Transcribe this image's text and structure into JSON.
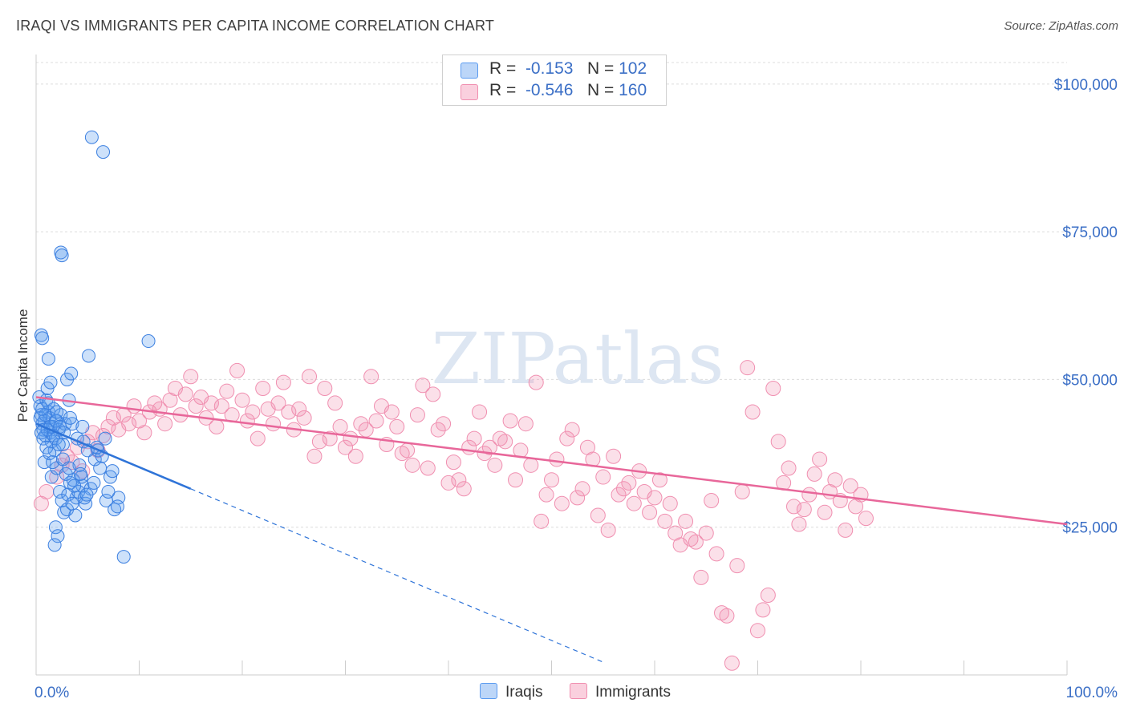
{
  "title": "IRAQI VS IMMIGRANTS PER CAPITA INCOME CORRELATION CHART",
  "source": "Source: ZipAtlas.com",
  "watermark": "ZIPatlas",
  "legend": {
    "rows": [
      {
        "r_label": "R =",
        "r_value": "-0.153",
        "n_label": "N =",
        "n_value": "102",
        "color": "#5b9bf0"
      },
      {
        "r_label": "R =",
        "r_value": "-0.546",
        "n_label": "N =",
        "n_value": "160",
        "color": "#f08fb0"
      }
    ]
  },
  "bottom_legend": {
    "series1": "Iraqis",
    "series2": "Immigrants"
  },
  "chart_data": {
    "type": "scatter",
    "title": "IRAQI VS IMMIGRANTS PER CAPITA INCOME CORRELATION CHART",
    "xlabel": "",
    "ylabel": "Per Capita Income",
    "xlim": [
      0,
      100
    ],
    "ylim": [
      0,
      105000
    ],
    "x_tick_labels": [
      "0.0%",
      "100.0%"
    ],
    "y_ticks": [
      25000,
      50000,
      75000,
      100000
    ],
    "y_tick_labels": [
      "$25,000",
      "$50,000",
      "$75,000",
      "$100,000"
    ],
    "grid": true,
    "series": [
      {
        "name": "Iraqis",
        "color": "#5b9bf0",
        "trend": {
          "x0": 0,
          "y0": 42500,
          "x1": 15,
          "y1": 31500,
          "dash_to_x": 55
        },
        "points": [
          [
            0.3,
            47000
          ],
          [
            0.4,
            45500
          ],
          [
            0.5,
            44000
          ],
          [
            0.6,
            42500
          ],
          [
            0.7,
            41500
          ],
          [
            0.8,
            43000
          ],
          [
            0.9,
            40500
          ],
          [
            1.0,
            46500
          ],
          [
            1.1,
            48500
          ],
          [
            1.2,
            44500
          ],
          [
            1.3,
            43500
          ],
          [
            1.4,
            41000
          ],
          [
            1.5,
            39500
          ],
          [
            1.6,
            42000
          ],
          [
            1.7,
            45000
          ],
          [
            1.8,
            38000
          ],
          [
            1.9,
            40000
          ],
          [
            2.0,
            43000
          ],
          [
            2.2,
            41500
          ],
          [
            2.4,
            44000
          ],
          [
            2.6,
            39000
          ],
          [
            2.8,
            42500
          ],
          [
            3.0,
            50000
          ],
          [
            3.2,
            46500
          ],
          [
            0.5,
            57500
          ],
          [
            0.6,
            57000
          ],
          [
            1.2,
            53500
          ],
          [
            1.4,
            49500
          ],
          [
            3.4,
            51000
          ],
          [
            5.1,
            54000
          ],
          [
            0.8,
            36000
          ],
          [
            1.5,
            33500
          ],
          [
            2.0,
            35000
          ],
          [
            2.3,
            31000
          ],
          [
            2.5,
            29500
          ],
          [
            2.7,
            27500
          ],
          [
            3.0,
            28000
          ],
          [
            3.3,
            32500
          ],
          [
            3.6,
            33000
          ],
          [
            3.9,
            30000
          ],
          [
            4.2,
            35500
          ],
          [
            4.5,
            32000
          ],
          [
            4.8,
            29000
          ],
          [
            5.3,
            31500
          ],
          [
            5.7,
            36500
          ],
          [
            6.0,
            38000
          ],
          [
            6.4,
            37000
          ],
          [
            6.8,
            29500
          ],
          [
            7.2,
            33500
          ],
          [
            7.6,
            28000
          ],
          [
            8.0,
            30000
          ],
          [
            1.9,
            25000
          ],
          [
            2.1,
            23500
          ],
          [
            1.8,
            22000
          ],
          [
            8.5,
            20000
          ],
          [
            2.4,
            71500
          ],
          [
            2.5,
            71000
          ],
          [
            5.4,
            91000
          ],
          [
            6.5,
            88500
          ],
          [
            10.9,
            56500
          ],
          [
            0.4,
            43500
          ],
          [
            0.7,
            40000
          ],
          [
            1.0,
            38500
          ],
          [
            1.3,
            37500
          ],
          [
            1.6,
            36000
          ],
          [
            2.9,
            34000
          ],
          [
            3.1,
            30500
          ],
          [
            3.5,
            29000
          ],
          [
            3.8,
            27000
          ],
          [
            4.1,
            31000
          ],
          [
            4.4,
            33500
          ],
          [
            4.7,
            30000
          ],
          [
            1.1,
            41500
          ],
          [
            1.7,
            40500
          ],
          [
            2.2,
            39000
          ],
          [
            2.6,
            36500
          ],
          [
            3.2,
            35000
          ],
          [
            3.7,
            32000
          ],
          [
            4.3,
            34000
          ],
          [
            4.9,
            30500
          ],
          [
            5.6,
            32500
          ],
          [
            6.2,
            35000
          ],
          [
            7.0,
            31000
          ],
          [
            7.4,
            34500
          ],
          [
            7.9,
            28500
          ],
          [
            0.9,
            44000
          ],
          [
            1.4,
            42000
          ],
          [
            1.9,
            43000
          ],
          [
            2.3,
            42000
          ],
          [
            2.7,
            41000
          ],
          [
            3.5,
            42500
          ],
          [
            4.0,
            40000
          ],
          [
            4.6,
            39500
          ],
          [
            5.0,
            38000
          ],
          [
            0.6,
            45000
          ],
          [
            0.5,
            41000
          ],
          [
            1.2,
            46000
          ],
          [
            2.0,
            44500
          ],
          [
            3.3,
            43500
          ],
          [
            4.5,
            42000
          ],
          [
            5.9,
            38500
          ],
          [
            6.7,
            40000
          ]
        ]
      },
      {
        "name": "Immigrants",
        "color": "#f08fb0",
        "trend": {
          "x0": 0,
          "y0": 47000,
          "x1": 100,
          "y1": 25500
        },
        "points": [
          [
            0.5,
            29000
          ],
          [
            1.0,
            31000
          ],
          [
            2.0,
            33500
          ],
          [
            2.5,
            35500
          ],
          [
            3.0,
            37000
          ],
          [
            3.5,
            36000
          ],
          [
            4.0,
            38500
          ],
          [
            4.5,
            34500
          ],
          [
            5.0,
            39500
          ],
          [
            5.5,
            41000
          ],
          [
            6.0,
            38000
          ],
          [
            6.5,
            40500
          ],
          [
            7.0,
            42000
          ],
          [
            7.5,
            43500
          ],
          [
            8.0,
            41500
          ],
          [
            8.5,
            44000
          ],
          [
            9.0,
            42500
          ],
          [
            9.5,
            45500
          ],
          [
            10.0,
            43000
          ],
          [
            10.5,
            41000
          ],
          [
            11.0,
            44500
          ],
          [
            11.5,
            46000
          ],
          [
            12.0,
            45000
          ],
          [
            12.5,
            42500
          ],
          [
            13.0,
            46500
          ],
          [
            13.5,
            48500
          ],
          [
            14.0,
            44000
          ],
          [
            14.5,
            47500
          ],
          [
            15.0,
            50500
          ],
          [
            15.5,
            45500
          ],
          [
            16.0,
            47000
          ],
          [
            16.5,
            43500
          ],
          [
            17.0,
            46000
          ],
          [
            17.5,
            42000
          ],
          [
            18.0,
            45500
          ],
          [
            18.5,
            48000
          ],
          [
            19.0,
            44000
          ],
          [
            19.5,
            51500
          ],
          [
            20.0,
            46500
          ],
          [
            20.5,
            43000
          ],
          [
            21.0,
            44500
          ],
          [
            21.5,
            40000
          ],
          [
            22.0,
            48500
          ],
          [
            22.5,
            45000
          ],
          [
            23.0,
            42500
          ],
          [
            23.5,
            46000
          ],
          [
            24.0,
            49500
          ],
          [
            24.5,
            44500
          ],
          [
            25.0,
            41500
          ],
          [
            25.5,
            45000
          ],
          [
            26.0,
            43500
          ],
          [
            26.5,
            50500
          ],
          [
            27.0,
            37000
          ],
          [
            27.5,
            39500
          ],
          [
            28.0,
            48500
          ],
          [
            28.5,
            40000
          ],
          [
            29.0,
            46000
          ],
          [
            29.5,
            42000
          ],
          [
            30.0,
            38500
          ],
          [
            30.5,
            40000
          ],
          [
            31.0,
            37000
          ],
          [
            31.5,
            42500
          ],
          [
            32.0,
            41500
          ],
          [
            32.5,
            50500
          ],
          [
            33.0,
            43000
          ],
          [
            33.5,
            45500
          ],
          [
            34.0,
            39000
          ],
          [
            34.5,
            44500
          ],
          [
            35.0,
            42000
          ],
          [
            35.5,
            37500
          ],
          [
            36.0,
            38000
          ],
          [
            36.5,
            35500
          ],
          [
            37.0,
            44000
          ],
          [
            37.5,
            49000
          ],
          [
            38.0,
            35000
          ],
          [
            38.5,
            47500
          ],
          [
            39.0,
            41500
          ],
          [
            39.5,
            42500
          ],
          [
            40.0,
            32500
          ],
          [
            40.5,
            36000
          ],
          [
            41.0,
            33000
          ],
          [
            41.5,
            31500
          ],
          [
            42.0,
            38500
          ],
          [
            42.5,
            40000
          ],
          [
            43.0,
            44500
          ],
          [
            43.5,
            37500
          ],
          [
            44.0,
            38500
          ],
          [
            44.5,
            35500
          ],
          [
            45.0,
            40000
          ],
          [
            45.5,
            39500
          ],
          [
            46.0,
            43000
          ],
          [
            46.5,
            33000
          ],
          [
            47.0,
            38000
          ],
          [
            47.5,
            42500
          ],
          [
            48.0,
            35500
          ],
          [
            48.5,
            49500
          ],
          [
            49.0,
            26000
          ],
          [
            49.5,
            30500
          ],
          [
            50.0,
            33000
          ],
          [
            50.5,
            36500
          ],
          [
            51.0,
            29000
          ],
          [
            51.5,
            40000
          ],
          [
            52.0,
            41500
          ],
          [
            52.5,
            30000
          ],
          [
            53.0,
            31500
          ],
          [
            53.5,
            38500
          ],
          [
            54.0,
            36500
          ],
          [
            54.5,
            27000
          ],
          [
            55.0,
            33500
          ],
          [
            55.5,
            24500
          ],
          [
            56.0,
            37000
          ],
          [
            56.5,
            30500
          ],
          [
            57.0,
            31500
          ],
          [
            57.5,
            32500
          ],
          [
            58.0,
            29000
          ],
          [
            58.5,
            34500
          ],
          [
            59.0,
            31000
          ],
          [
            59.5,
            27500
          ],
          [
            60.0,
            30000
          ],
          [
            60.5,
            33000
          ],
          [
            61.0,
            26000
          ],
          [
            61.5,
            29000
          ],
          [
            62.0,
            24000
          ],
          [
            62.5,
            22000
          ],
          [
            63.0,
            26000
          ],
          [
            63.5,
            23000
          ],
          [
            64.0,
            22500
          ],
          [
            64.5,
            16500
          ],
          [
            65.0,
            24000
          ],
          [
            65.5,
            29500
          ],
          [
            66.0,
            20500
          ],
          [
            66.5,
            10500
          ],
          [
            67.0,
            10000
          ],
          [
            67.5,
            2000
          ],
          [
            68.0,
            18500
          ],
          [
            68.5,
            31000
          ],
          [
            69.0,
            52000
          ],
          [
            69.5,
            44500
          ],
          [
            70.0,
            7500
          ],
          [
            70.5,
            11000
          ],
          [
            71.0,
            13500
          ],
          [
            71.5,
            48500
          ],
          [
            72.0,
            39500
          ],
          [
            72.5,
            32500
          ],
          [
            73.0,
            35000
          ],
          [
            73.5,
            28500
          ],
          [
            74.0,
            25500
          ],
          [
            74.5,
            28000
          ],
          [
            75.0,
            30500
          ],
          [
            75.5,
            34000
          ],
          [
            76.0,
            36500
          ],
          [
            76.5,
            27500
          ],
          [
            77.0,
            31000
          ],
          [
            77.5,
            33000
          ],
          [
            78.0,
            29500
          ],
          [
            78.5,
            24500
          ],
          [
            79.0,
            32000
          ],
          [
            79.5,
            28500
          ],
          [
            80.0,
            30500
          ],
          [
            80.5,
            26500
          ]
        ]
      }
    ]
  }
}
